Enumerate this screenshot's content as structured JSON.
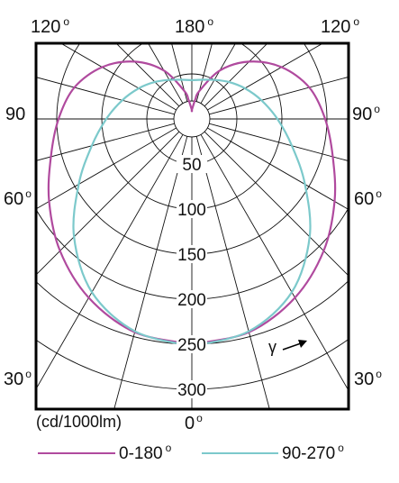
{
  "chart_data": {
    "type": "polar",
    "unit_label": "(cd/1000lm)",
    "gamma_symbol": "γ",
    "radial_ticks": [
      "50",
      "100",
      "150",
      "200",
      "250",
      "300"
    ],
    "radial_tick_values": [
      50,
      100,
      150,
      200,
      250,
      300
    ],
    "radial_max": 300,
    "angle_labels": {
      "top_left": "120",
      "top_center": "180",
      "top_right": "120",
      "left_90": "90",
      "right_90": "90",
      "left_60": "60",
      "right_60": "60",
      "left_30": "30",
      "right_30": "30",
      "bottom_0": "0"
    },
    "degree_symbol": "o",
    "series": [
      {
        "name": "0-180°",
        "legend_text": "0-180",
        "color": "#b04a9e",
        "gamma_deg": [
          0,
          15,
          30,
          45,
          60,
          75,
          90,
          105,
          120,
          135,
          150,
          165,
          170,
          180
        ],
        "intensity": [
          250,
          245,
          229,
          207,
          183,
          162,
          148,
          135,
          115,
          90,
          62,
          32,
          22,
          10
        ]
      },
      {
        "name": "90-270°",
        "legend_text": "90-270",
        "color": "#7cc9cb",
        "gamma_deg": [
          0,
          15,
          30,
          45,
          60,
          75,
          90,
          105,
          120,
          135,
          150,
          165,
          180
        ],
        "intensity": [
          252,
          244,
          222,
          185,
          145,
          115,
          95,
          80,
          68,
          58,
          50,
          45,
          43
        ]
      }
    ],
    "grid": true
  }
}
